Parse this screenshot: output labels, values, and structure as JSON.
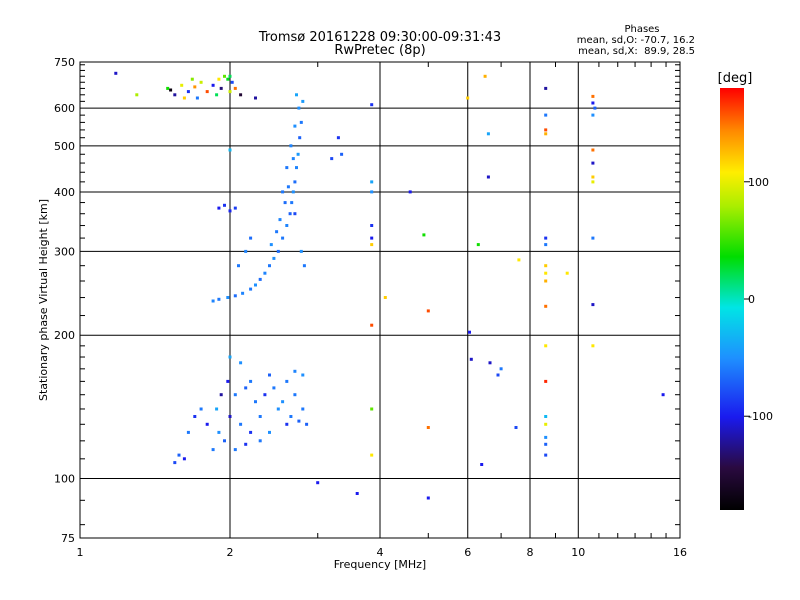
{
  "chart_data": {
    "type": "scatter",
    "title": "Tromsø 20161228 09:30:00-09:31:43",
    "subtitle": "RwPretec (8p)",
    "xlabel": "Frequency [MHz]",
    "ylabel": "Stationary phase Virtual Height [km]",
    "x_scale": "log",
    "y_scale": "log",
    "xlim": [
      1,
      16
    ],
    "ylim": [
      75,
      750
    ],
    "x_ticks": [
      1,
      2,
      4,
      6,
      8,
      10,
      16
    ],
    "x_tick_labels": [
      "1",
      "2",
      "4",
      "6",
      "8",
      "10",
      "16"
    ],
    "y_ticks": [
      75,
      100,
      200,
      300,
      400,
      500,
      600,
      750
    ],
    "y_tick_labels": [
      "75",
      "100",
      "200",
      "300",
      "400",
      "500",
      "600",
      "750"
    ],
    "grid": true,
    "phases_box": {
      "heading": "Phases",
      "line1": "mean, sd,O: -70.7, 16.2",
      "line2": "mean, sd,X:  89.9, 28.5"
    },
    "colorbar": {
      "label": "[deg]",
      "range": [
        -180,
        180
      ],
      "ticks": [
        100,
        0,
        -100
      ],
      "tick_labels": [
        "100",
        "0",
        "-100"
      ]
    },
    "points": [
      [
        1.18,
        710,
        -110
      ],
      [
        1.3,
        640,
        80
      ],
      [
        1.5,
        660,
        40
      ],
      [
        1.55,
        640,
        -120
      ],
      [
        1.6,
        670,
        100
      ],
      [
        1.65,
        650,
        -90
      ],
      [
        1.7,
        665,
        140
      ],
      [
        1.72,
        630,
        -60
      ],
      [
        1.75,
        680,
        90
      ],
      [
        1.8,
        650,
        160
      ],
      [
        1.85,
        670,
        -100
      ],
      [
        1.9,
        690,
        110
      ],
      [
        1.92,
        660,
        -130
      ],
      [
        1.95,
        700,
        60
      ],
      [
        1.98,
        690,
        30
      ],
      [
        2.0,
        700,
        20
      ],
      [
        2.02,
        680,
        -80
      ],
      [
        2.05,
        660,
        150
      ],
      [
        2.1,
        640,
        -150
      ],
      [
        1.62,
        630,
        120
      ],
      [
        1.88,
        640,
        20
      ],
      [
        2.0,
        650,
        90
      ],
      [
        2.25,
        630,
        -120
      ],
      [
        1.52,
        655,
        -170
      ],
      [
        1.68,
        690,
        70
      ],
      [
        2.72,
        640,
        -40
      ],
      [
        2.75,
        600,
        -50
      ],
      [
        2.78,
        560,
        -60
      ],
      [
        2.76,
        520,
        -70
      ],
      [
        2.74,
        480,
        -45
      ],
      [
        2.72,
        450,
        -55
      ],
      [
        2.7,
        420,
        -65
      ],
      [
        2.68,
        400,
        -50
      ],
      [
        2.66,
        380,
        -60
      ],
      [
        2.64,
        360,
        -70
      ],
      [
        2.6,
        340,
        -55
      ],
      [
        2.55,
        320,
        -60
      ],
      [
        2.5,
        300,
        -65
      ],
      [
        2.45,
        290,
        -50
      ],
      [
        2.4,
        280,
        -60
      ],
      [
        2.35,
        270,
        -55
      ],
      [
        2.3,
        262,
        -65
      ],
      [
        2.25,
        255,
        -50
      ],
      [
        2.2,
        250,
        -60
      ],
      [
        2.12,
        245,
        -55
      ],
      [
        2.05,
        242,
        -65
      ],
      [
        1.98,
        240,
        -50
      ],
      [
        1.9,
        238,
        -60
      ],
      [
        1.85,
        236,
        -55
      ],
      [
        2.08,
        280,
        -60
      ],
      [
        2.15,
        300,
        -55
      ],
      [
        2.2,
        320,
        -65
      ],
      [
        2.6,
        450,
        -60
      ],
      [
        2.65,
        500,
        -55
      ],
      [
        2.7,
        550,
        -50
      ],
      [
        2.8,
        620,
        -45
      ],
      [
        2.62,
        410,
        -60
      ],
      [
        2.58,
        380,
        -65
      ],
      [
        2.52,
        350,
        -55
      ],
      [
        2.48,
        330,
        -60
      ],
      [
        2.42,
        310,
        -50
      ],
      [
        2.55,
        400,
        -60
      ],
      [
        2.68,
        470,
        -55
      ],
      [
        2.78,
        300,
        -50
      ],
      [
        2.82,
        280,
        -60
      ],
      [
        1.9,
        370,
        -100
      ],
      [
        1.95,
        375,
        -90
      ],
      [
        2.0,
        365,
        -95
      ],
      [
        2.05,
        370,
        -85
      ],
      [
        2.7,
        360,
        -80
      ],
      [
        3.3,
        520,
        -90
      ],
      [
        3.35,
        480,
        -70
      ],
      [
        3.2,
        470,
        -80
      ],
      [
        3.85,
        610,
        -90
      ],
      [
        3.85,
        420,
        -40
      ],
      [
        3.85,
        400,
        -50
      ],
      [
        3.85,
        340,
        -90
      ],
      [
        3.85,
        320,
        -100
      ],
      [
        3.85,
        310,
        120
      ],
      [
        3.85,
        210,
        160
      ],
      [
        3.85,
        140,
        60
      ],
      [
        3.85,
        112,
        110
      ],
      [
        4.1,
        240,
        120
      ],
      [
        4.6,
        400,
        -100
      ],
      [
        4.9,
        325,
        40
      ],
      [
        5.0,
        225,
        160
      ],
      [
        5.0,
        128,
        150
      ],
      [
        5.0,
        91,
        -100
      ],
      [
        6.0,
        630,
        120
      ],
      [
        6.05,
        203,
        -100
      ],
      [
        6.1,
        178,
        -110
      ],
      [
        6.3,
        310,
        40
      ],
      [
        6.4,
        107,
        -100
      ],
      [
        6.5,
        700,
        130
      ],
      [
        6.6,
        530,
        -40
      ],
      [
        6.6,
        430,
        -110
      ],
      [
        6.65,
        175,
        -110
      ],
      [
        6.9,
        165,
        -80
      ],
      [
        7.0,
        170,
        -60
      ],
      [
        7.5,
        128,
        -80
      ],
      [
        7.6,
        288,
        110
      ],
      [
        8.6,
        660,
        -120
      ],
      [
        8.6,
        580,
        -60
      ],
      [
        8.6,
        540,
        160
      ],
      [
        8.6,
        530,
        130
      ],
      [
        8.6,
        320,
        -90
      ],
      [
        8.6,
        310,
        -60
      ],
      [
        8.6,
        280,
        120
      ],
      [
        8.6,
        270,
        110
      ],
      [
        8.6,
        260,
        130
      ],
      [
        8.6,
        230,
        150
      ],
      [
        8.6,
        190,
        110
      ],
      [
        8.6,
        160,
        170
      ],
      [
        8.6,
        135,
        -30
      ],
      [
        8.6,
        130,
        100
      ],
      [
        8.6,
        122,
        -50
      ],
      [
        8.6,
        118,
        -70
      ],
      [
        8.6,
        112,
        -80
      ],
      [
        9.5,
        270,
        110
      ],
      [
        10.7,
        635,
        150
      ],
      [
        10.7,
        615,
        -100
      ],
      [
        10.7,
        580,
        -50
      ],
      [
        10.7,
        490,
        150
      ],
      [
        10.7,
        460,
        -110
      ],
      [
        10.7,
        430,
        120
      ],
      [
        10.7,
        420,
        100
      ],
      [
        10.7,
        320,
        -60
      ],
      [
        10.7,
        232,
        -110
      ],
      [
        10.7,
        190,
        110
      ],
      [
        10.8,
        600,
        -70
      ],
      [
        14.8,
        150,
        -100
      ],
      [
        3.0,
        98,
        -100
      ],
      [
        3.6,
        93,
        -100
      ],
      [
        2.2,
        160,
        -60
      ],
      [
        2.4,
        165,
        -70
      ],
      [
        2.7,
        168,
        -55
      ],
      [
        2.8,
        140,
        -60
      ],
      [
        2.6,
        130,
        -90
      ],
      [
        2.5,
        140,
        -50
      ],
      [
        2.3,
        135,
        -60
      ],
      [
        2.2,
        125,
        -90
      ],
      [
        2.1,
        130,
        -60
      ],
      [
        2.0,
        135,
        -110
      ],
      [
        1.95,
        120,
        -70
      ],
      [
        1.9,
        125,
        -50
      ],
      [
        1.85,
        115,
        -60
      ],
      [
        1.8,
        130,
        -100
      ],
      [
        1.75,
        140,
        -60
      ],
      [
        1.7,
        135,
        -90
      ],
      [
        1.65,
        125,
        -60
      ],
      [
        1.62,
        110,
        -100
      ],
      [
        1.58,
        112,
        -70
      ],
      [
        1.55,
        108,
        -80
      ],
      [
        2.05,
        150,
        -60
      ],
      [
        2.15,
        155,
        -70
      ],
      [
        2.25,
        145,
        -60
      ],
      [
        2.35,
        150,
        -90
      ],
      [
        2.45,
        155,
        -60
      ],
      [
        2.55,
        145,
        -50
      ],
      [
        2.65,
        135,
        -60
      ],
      [
        2.75,
        132,
        -70
      ],
      [
        2.0,
        180,
        -40
      ],
      [
        2.1,
        175,
        -50
      ],
      [
        1.98,
        160,
        -100
      ],
      [
        1.92,
        150,
        -120
      ],
      [
        2.3,
        120,
        -60
      ],
      [
        2.15,
        118,
        -90
      ],
      [
        2.05,
        115,
        -60
      ],
      [
        1.88,
        140,
        -40
      ],
      [
        2.4,
        125,
        -50
      ],
      [
        2.6,
        160,
        -60
      ],
      [
        2.8,
        165,
        -50
      ],
      [
        2.7,
        150,
        -60
      ],
      [
        2.85,
        130,
        -70
      ],
      [
        2.0,
        490,
        -30
      ]
    ]
  }
}
